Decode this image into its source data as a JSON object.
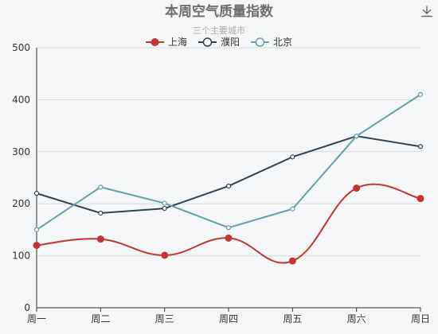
{
  "chart_data": {
    "type": "line",
    "title": "本周空气质量指数",
    "subtitle": "三个主要城市",
    "categories": [
      "周一",
      "周二",
      "周三",
      "周四",
      "周五",
      "周六",
      "周日"
    ],
    "ylim": [
      0,
      500
    ],
    "yticks": [
      0,
      100,
      200,
      300,
      400,
      500
    ],
    "grid": true,
    "legend_position": "top-center",
    "series": [
      {
        "name": "上海",
        "color": "#c23531",
        "smooth": true,
        "marker": "filled",
        "values": [
          120,
          132,
          101,
          134,
          90,
          230,
          210
        ]
      },
      {
        "name": "濮阳",
        "color": "#2f4554",
        "smooth": false,
        "marker": "hollow",
        "values": [
          220,
          182,
          191,
          234,
          290,
          330,
          310
        ]
      },
      {
        "name": "北京",
        "color": "#61a0a8",
        "smooth": false,
        "marker": "hollow",
        "values": [
          150,
          232,
          201,
          154,
          190,
          330,
          410
        ]
      }
    ]
  },
  "toolbar": {
    "icon": "download-icon"
  }
}
